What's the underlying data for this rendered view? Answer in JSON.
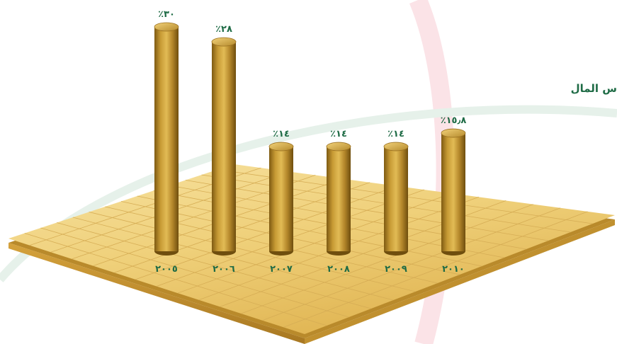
{
  "caption": "س المال",
  "chart_data": {
    "type": "bar",
    "title": "",
    "xlabel": "",
    "ylabel": "",
    "categories": [
      "٢٠٠٥",
      "٢٠٠٦",
      "٢٠٠٧",
      "٢٠٠٨",
      "٢٠٠٩",
      "٢٠١٠"
    ],
    "values": [
      30,
      28,
      14,
      14,
      14,
      15.8
    ],
    "value_labels": [
      "٪٣٠",
      "٪٢٨",
      "٪١٤",
      "٪١٤",
      "٪١٤",
      "٪١٥٫٨"
    ],
    "ylim": [
      0,
      30
    ],
    "grid": true,
    "legend": "none",
    "colors": {
      "bar": "#b8892a",
      "label": "#1e6b45",
      "floor": "#e9c766"
    }
  }
}
